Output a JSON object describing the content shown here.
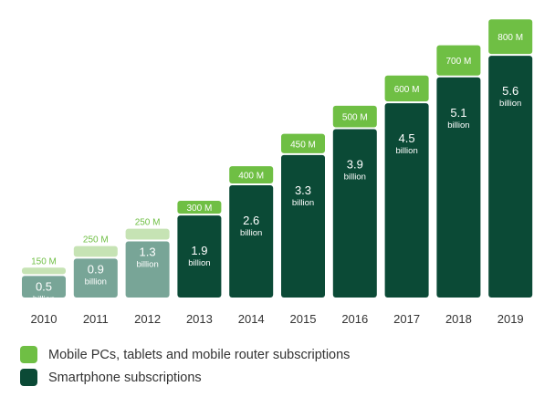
{
  "chart_data": {
    "type": "bar",
    "stacked": true,
    "categories": [
      "2010",
      "2011",
      "2012",
      "2013",
      "2014",
      "2015",
      "2016",
      "2017",
      "2018",
      "2019"
    ],
    "series": [
      {
        "name": "Smartphone subscriptions",
        "values": [
          0.5,
          0.9,
          1.3,
          1.9,
          2.6,
          3.3,
          3.9,
          4.5,
          5.1,
          5.6
        ],
        "value_labels": [
          "0.5",
          "0.9",
          "1.3",
          "1.9",
          "2.6",
          "3.3",
          "3.9",
          "4.5",
          "5.1",
          "5.6"
        ],
        "unit_label": "billion"
      },
      {
        "name": "Mobile PCs, tablets and mobile router subscriptions",
        "values": [
          0.15,
          0.25,
          0.25,
          0.3,
          0.4,
          0.45,
          0.5,
          0.6,
          0.7,
          0.8
        ],
        "value_labels": [
          "150 M",
          "250 M",
          "250 M",
          "300 M",
          "400 M",
          "450 M",
          "500 M",
          "600 M",
          "700 M",
          "800 M"
        ]
      }
    ],
    "ylim": [
      0,
      6.4
    ],
    "grid": false,
    "legend_position": "bottom-left"
  },
  "colors": {
    "smartphone_dark": "#0b4a36",
    "smartphone_light": "#78a597",
    "mobile_pc_green": "#6fbf44",
    "mobile_pc_light": "#c6e3b4",
    "axis_text": "#333333",
    "label_text": "#ffffff"
  },
  "legend": [
    {
      "label": "Mobile PCs, tablets and mobile router subscriptions",
      "color": "#6fbf44"
    },
    {
      "label": "Smartphone subscriptions",
      "color": "#0b4a36"
    }
  ]
}
